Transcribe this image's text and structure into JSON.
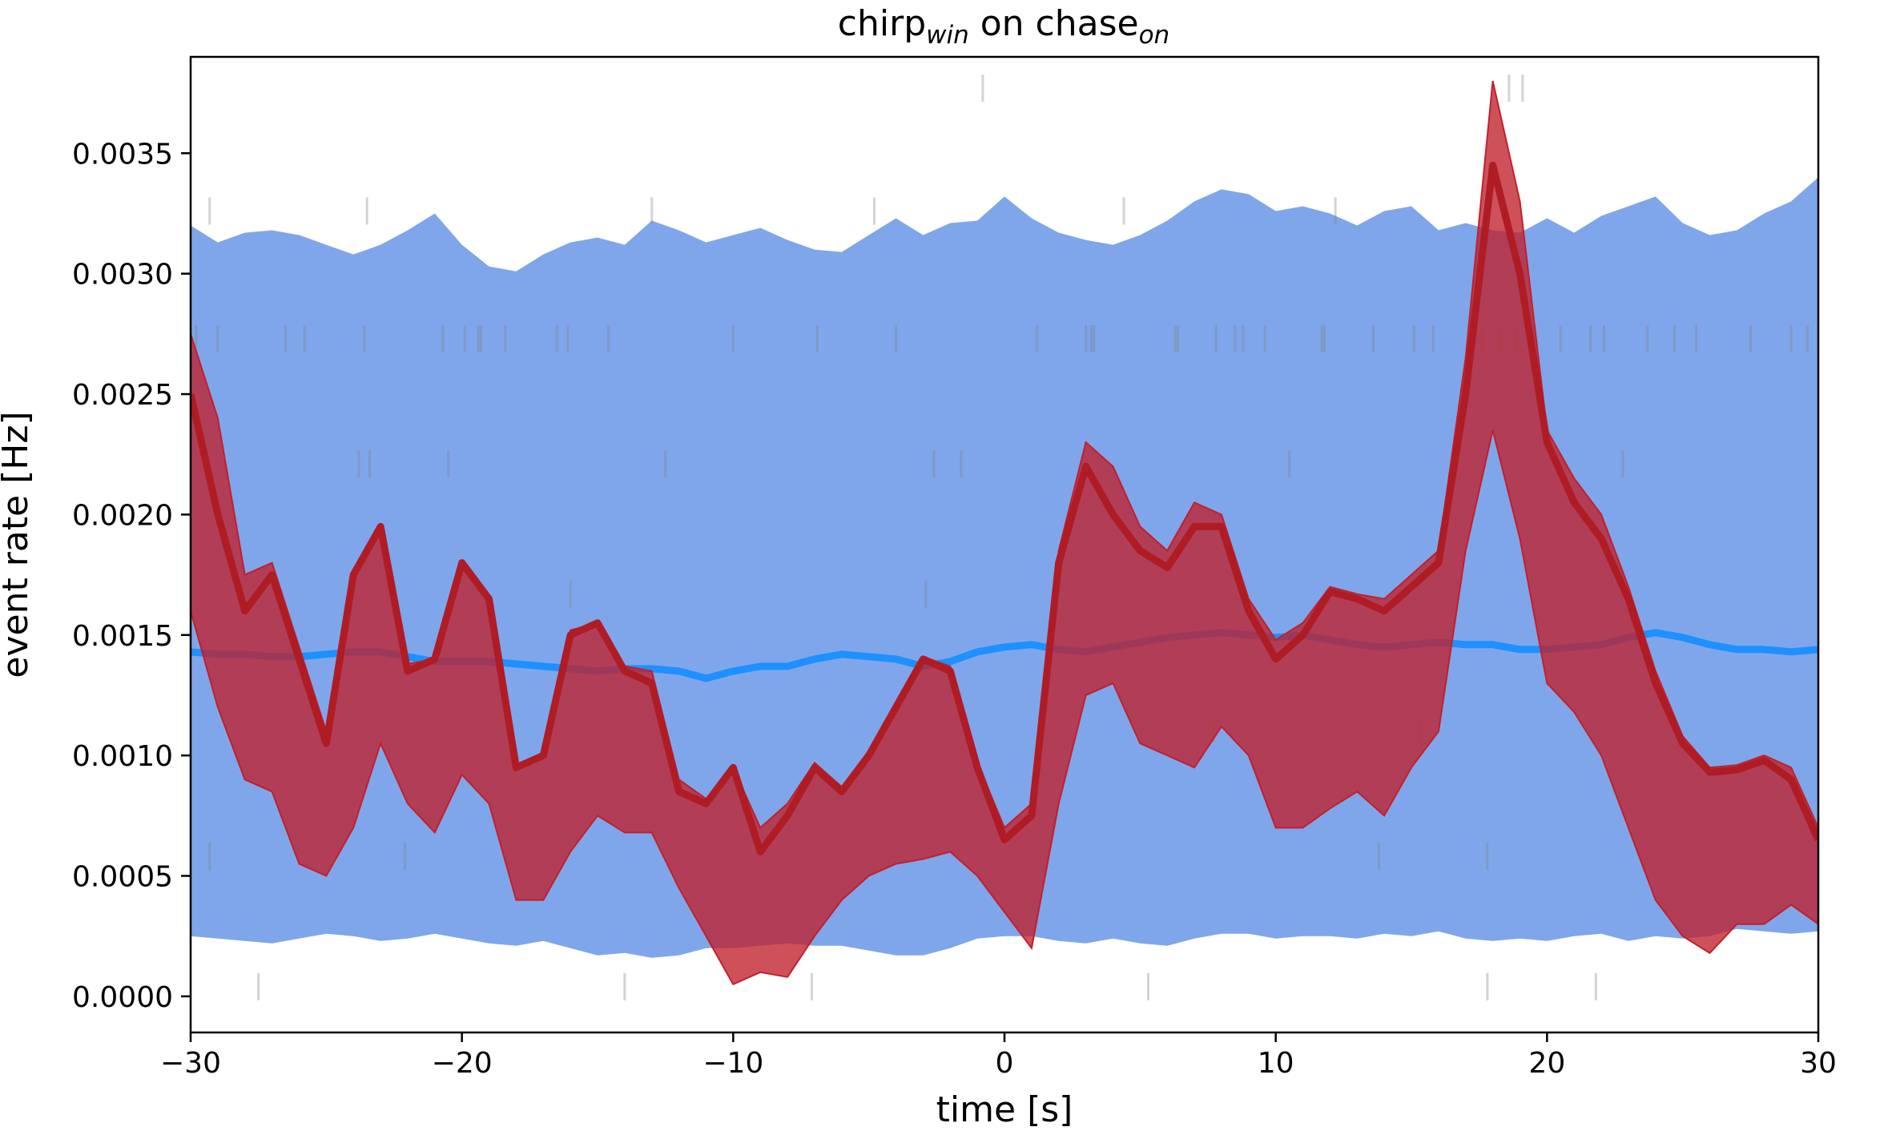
{
  "chart_data": {
    "type": "line",
    "title": {
      "main": "chirp",
      "main_sub": "win",
      "mid": " on chase",
      "end_sub": "on"
    },
    "xlabel": "time [s]",
    "ylabel": "event rate [Hz]",
    "xlim": [
      -30,
      30
    ],
    "ylim": [
      -0.00015,
      0.0039
    ],
    "xticks": [
      -30,
      -20,
      -10,
      0,
      10,
      20,
      30
    ],
    "xtick_labels": [
      "−30",
      "−20",
      "−10",
      "0",
      "10",
      "20",
      "30"
    ],
    "yticks": [
      0.0,
      0.0005,
      0.001,
      0.0015,
      0.002,
      0.0025,
      0.003,
      0.0035
    ],
    "ytick_labels": [
      "0.0000",
      "0.0005",
      "0.0010",
      "0.0015",
      "0.0020",
      "0.0025",
      "0.0030",
      "0.0035"
    ],
    "grid": false,
    "colors": {
      "blue_band": "#5b8de6",
      "blue_line": "#1e90ff",
      "red_band": "#c0202c",
      "red_line": "#b01c24",
      "raster": "#808080"
    },
    "series": [
      {
        "role": "shuffled-mean",
        "x": [
          -30,
          -29,
          -28,
          -27,
          -26,
          -25,
          -24,
          -23,
          -22,
          -21,
          -20,
          -19,
          -18,
          -17,
          -16,
          -15,
          -14,
          -13,
          -12,
          -11,
          -10,
          -9,
          -8,
          -7,
          -6,
          -5,
          -4,
          -3,
          -2,
          -1,
          0,
          1,
          2,
          3,
          4,
          5,
          6,
          7,
          8,
          9,
          10,
          11,
          12,
          13,
          14,
          15,
          16,
          17,
          18,
          19,
          20,
          21,
          22,
          23,
          24,
          25,
          26,
          27,
          28,
          29,
          30
        ],
        "y": [
          0.00143,
          0.00142,
          0.00142,
          0.00141,
          0.00141,
          0.00142,
          0.00143,
          0.00143,
          0.00141,
          0.00139,
          0.00139,
          0.00139,
          0.00138,
          0.00137,
          0.00136,
          0.00135,
          0.00136,
          0.00136,
          0.00135,
          0.00132,
          0.00135,
          0.00137,
          0.00137,
          0.0014,
          0.00142,
          0.00141,
          0.0014,
          0.00137,
          0.00139,
          0.00143,
          0.00145,
          0.00146,
          0.00144,
          0.00143,
          0.00145,
          0.00147,
          0.00149,
          0.0015,
          0.00151,
          0.0015,
          0.00149,
          0.0015,
          0.00148,
          0.00146,
          0.00145,
          0.00146,
          0.00147,
          0.00146,
          0.00146,
          0.00144,
          0.00144,
          0.00145,
          0.00146,
          0.00149,
          0.00151,
          0.00149,
          0.00146,
          0.00144,
          0.00144,
          0.00143,
          0.00144
        ],
        "band_lower": [
          0.00025,
          0.00024,
          0.00023,
          0.00022,
          0.00024,
          0.00026,
          0.00025,
          0.00023,
          0.00024,
          0.00026,
          0.00024,
          0.00022,
          0.00021,
          0.00023,
          0.0002,
          0.00017,
          0.00018,
          0.00016,
          0.00017,
          0.0002,
          0.0002,
          0.00021,
          0.00022,
          0.00021,
          0.00021,
          0.00019,
          0.00017,
          0.00017,
          0.0002,
          0.00024,
          0.00025,
          0.00025,
          0.00023,
          0.00022,
          0.00024,
          0.00022,
          0.00021,
          0.00024,
          0.00026,
          0.00026,
          0.00024,
          0.00025,
          0.00025,
          0.00024,
          0.00026,
          0.00025,
          0.00027,
          0.00024,
          0.00023,
          0.00024,
          0.00023,
          0.00025,
          0.00026,
          0.00023,
          0.00025,
          0.00024,
          0.00025,
          0.00028,
          0.00027,
          0.00026,
          0.00027
        ],
        "band_upper": [
          0.0032,
          0.00313,
          0.00317,
          0.00318,
          0.00316,
          0.00312,
          0.00308,
          0.00312,
          0.00318,
          0.00325,
          0.00312,
          0.00303,
          0.00301,
          0.00308,
          0.00313,
          0.00315,
          0.00312,
          0.00322,
          0.00318,
          0.00313,
          0.00316,
          0.00319,
          0.00314,
          0.0031,
          0.00309,
          0.00316,
          0.00323,
          0.00316,
          0.00321,
          0.00322,
          0.00332,
          0.00323,
          0.00317,
          0.00314,
          0.00312,
          0.00316,
          0.00322,
          0.0033,
          0.00335,
          0.00333,
          0.00326,
          0.00328,
          0.00325,
          0.0032,
          0.00326,
          0.00328,
          0.00318,
          0.00321,
          0.00318,
          0.00317,
          0.00323,
          0.00317,
          0.00324,
          0.00328,
          0.00332,
          0.00321,
          0.00316,
          0.00318,
          0.00325,
          0.0033,
          0.0034
        ]
      },
      {
        "role": "observed-mean",
        "x": [
          -30,
          -29,
          -28,
          -27,
          -26,
          -25,
          -24,
          -23,
          -22,
          -21,
          -20,
          -19,
          -18,
          -17,
          -16,
          -15,
          -14,
          -13,
          -12,
          -11,
          -10,
          -9,
          -8,
          -7,
          -6,
          -5,
          -4,
          -3,
          -2,
          -1,
          0,
          1,
          2,
          3,
          4,
          5,
          6,
          7,
          8,
          9,
          10,
          11,
          12,
          13,
          14,
          15,
          16,
          17,
          18,
          19,
          20,
          21,
          22,
          23,
          24,
          25,
          26,
          27,
          28,
          29,
          30
        ],
        "y": [
          0.0025,
          0.002,
          0.0016,
          0.00175,
          0.0014,
          0.00105,
          0.00175,
          0.00195,
          0.00135,
          0.0014,
          0.0018,
          0.00165,
          0.00095,
          0.001,
          0.0015,
          0.00155,
          0.00135,
          0.0013,
          0.00085,
          0.0008,
          0.00095,
          0.0006,
          0.00075,
          0.00095,
          0.00085,
          0.001,
          0.0012,
          0.0014,
          0.00135,
          0.00095,
          0.00065,
          0.00075,
          0.0018,
          0.0022,
          0.002,
          0.00185,
          0.00178,
          0.00195,
          0.00195,
          0.0016,
          0.0014,
          0.0015,
          0.00168,
          0.00165,
          0.0016,
          0.0017,
          0.0018,
          0.0025,
          0.00345,
          0.003,
          0.0023,
          0.00205,
          0.0019,
          0.00165,
          0.0013,
          0.00105,
          0.00093,
          0.00094,
          0.00098,
          0.0009,
          0.00065
        ],
        "band_lower": [
          0.0016,
          0.0012,
          0.0009,
          0.00085,
          0.00055,
          0.0005,
          0.0007,
          0.00105,
          0.0008,
          0.00068,
          0.00092,
          0.0008,
          0.0004,
          0.0004,
          0.0006,
          0.00075,
          0.00068,
          0.00068,
          0.00045,
          0.00025,
          5e-05,
          0.0001,
          8e-05,
          0.00025,
          0.0004,
          0.0005,
          0.00055,
          0.00057,
          0.0006,
          0.0005,
          0.00035,
          0.0002,
          0.0008,
          0.00125,
          0.0013,
          0.00105,
          0.001,
          0.00095,
          0.00112,
          0.001,
          0.0007,
          0.0007,
          0.00078,
          0.00085,
          0.00075,
          0.00095,
          0.0011,
          0.00185,
          0.00235,
          0.0019,
          0.0013,
          0.00118,
          0.001,
          0.0007,
          0.0004,
          0.00025,
          0.00018,
          0.0003,
          0.0003,
          0.00038,
          0.0003
        ],
        "band_upper": [
          0.00275,
          0.0024,
          0.00175,
          0.0018,
          0.00145,
          0.0011,
          0.00175,
          0.00195,
          0.00138,
          0.0014,
          0.0018,
          0.00165,
          0.00095,
          0.001,
          0.00152,
          0.00155,
          0.00137,
          0.00135,
          0.0009,
          0.00082,
          0.00095,
          0.0007,
          0.0008,
          0.00097,
          0.00087,
          0.00102,
          0.00122,
          0.00141,
          0.00137,
          0.00097,
          0.0007,
          0.0008,
          0.00185,
          0.0023,
          0.0022,
          0.00195,
          0.00185,
          0.00205,
          0.002,
          0.00165,
          0.00148,
          0.00155,
          0.0017,
          0.00167,
          0.00165,
          0.00175,
          0.00185,
          0.00265,
          0.0038,
          0.0033,
          0.00235,
          0.00215,
          0.002,
          0.0017,
          0.00135,
          0.00108,
          0.00095,
          0.00096,
          0.001,
          0.00095,
          0.0007
        ]
      }
    ],
    "raster_rows": [
      {
        "y": 0.00377,
        "x": [
          -0.8,
          18.6,
          19.1
        ]
      },
      {
        "y": 0.00326,
        "x": [
          -29.3,
          -23.5,
          -13.0,
          -4.8,
          4.4,
          12.2
        ]
      },
      {
        "y": 0.00273,
        "x": [
          -29.8,
          -29.0,
          -26.5,
          -25.8,
          -23.6,
          -20.7,
          -19.9,
          -19.4,
          -19.3,
          -18.4,
          -16.5,
          -16.1,
          -14.6,
          -10.0,
          -6.9,
          -4.0,
          1.2,
          3.0,
          3.2,
          3.3,
          6.3,
          6.4,
          7.8,
          8.5,
          8.8,
          9.6,
          11.7,
          11.8,
          13.6,
          15.1,
          15.8,
          17.1,
          17.6,
          18.3,
          18.9,
          19.5,
          20.5,
          21.6,
          22.1,
          23.7,
          24.7,
          25.5,
          27.5,
          29.0,
          29.6
        ]
      },
      {
        "y": 0.00221,
        "x": [
          -23.8,
          -23.4,
          -20.5,
          -12.5,
          -2.6,
          -1.6,
          10.5,
          22.8
        ]
      },
      {
        "y": 0.00167,
        "x": [
          -16.0,
          -2.9
        ]
      },
      {
        "y": 0.00111,
        "x": [
          7.7,
          15.3
        ]
      },
      {
        "y": 0.00058,
        "x": [
          -29.3,
          -22.1,
          13.8,
          17.8
        ]
      },
      {
        "y": 4e-05,
        "x": [
          -27.5,
          -14.0,
          -7.1,
          5.3,
          17.8,
          21.8
        ]
      }
    ]
  }
}
